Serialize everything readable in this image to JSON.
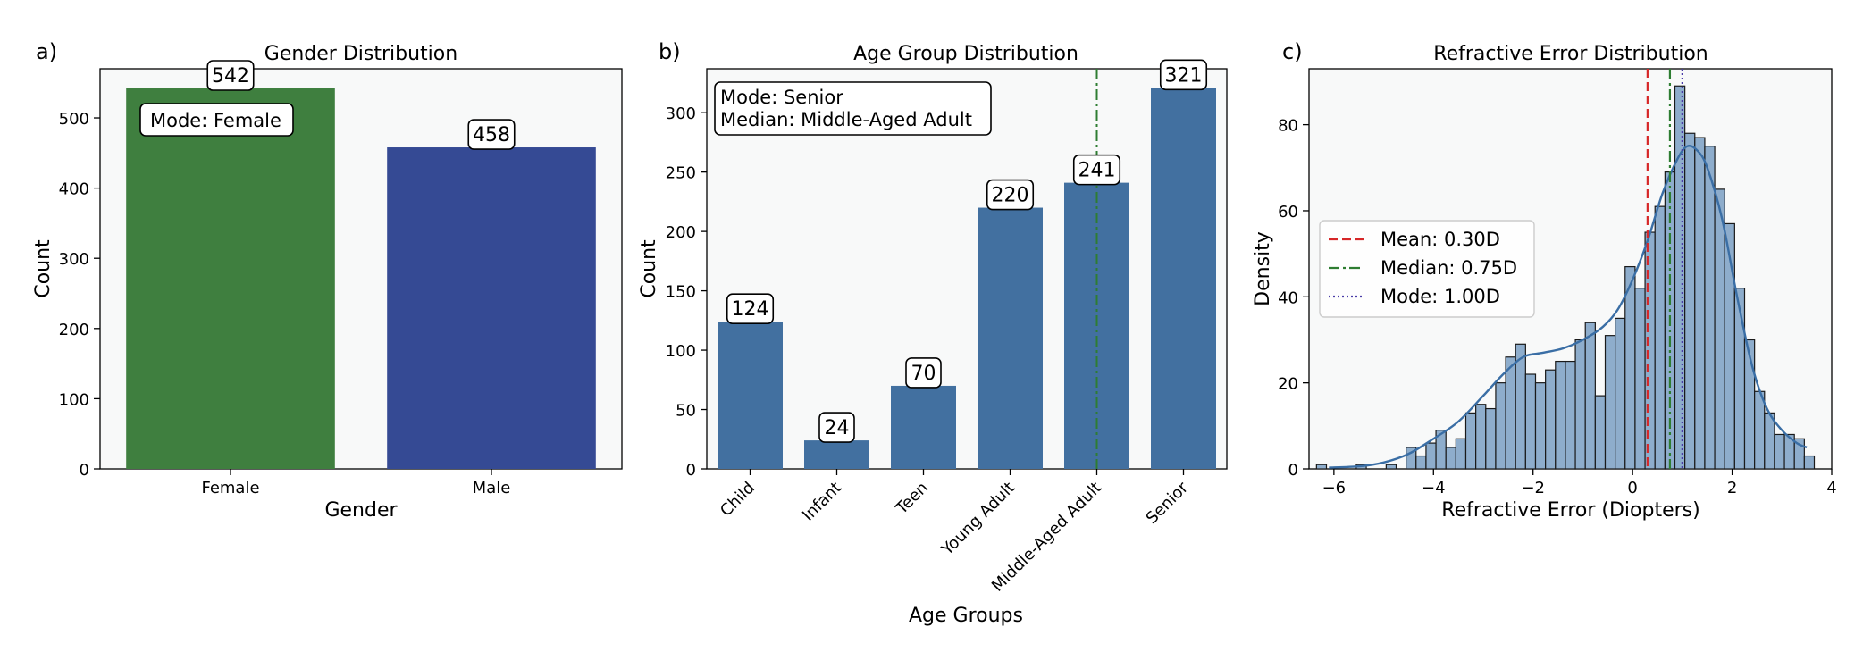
{
  "colors": {
    "female_bar": "#3f7f3f",
    "male_bar": "#354a94",
    "age_bar": "#4270a0",
    "hist_bar": "#8eadcc",
    "kde_line": "#3a6ea5",
    "mean_line": "#d62728",
    "median_line": "#2e7d32",
    "mode_line": "#4a3ca8",
    "panel_background": "#f8f9f9"
  },
  "chart_data": [
    {
      "type": "bar",
      "panel_label": "a)",
      "title": "Gender Distribution",
      "xlabel": "Gender",
      "ylabel": "Count",
      "categories": [
        "Female",
        "Male"
      ],
      "values": [
        542,
        458
      ],
      "ylim": [
        0,
        570
      ],
      "yticks": [
        "0",
        "100",
        "200",
        "300",
        "400",
        "500"
      ],
      "annotation": "Mode: Female",
      "grid": false
    },
    {
      "type": "bar",
      "panel_label": "b)",
      "title": "Age Group Distribution",
      "xlabel": "Age Groups",
      "ylabel": "Count",
      "categories": [
        "Child",
        "Infant",
        "Teen",
        "Young Adult",
        "Middle-Aged Adult",
        "Senior"
      ],
      "values": [
        124,
        24,
        70,
        220,
        241,
        321
      ],
      "ylim": [
        0,
        337
      ],
      "yticks": [
        "0",
        "50",
        "100",
        "150",
        "200",
        "250",
        "300"
      ],
      "annotation_lines": [
        "Mode: Senior",
        "Median: Middle-Aged Adult"
      ],
      "median_marker_category": "Middle-Aged Adult",
      "grid": false
    },
    {
      "type": "histogram",
      "panel_label": "c)",
      "title": "Refractive Error Distribution",
      "xlabel": "Refractive Error (Diopters)",
      "ylabel": "Density",
      "xlim": [
        -6.5,
        4.0
      ],
      "ylim": [
        0,
        93
      ],
      "xticks": [
        "−6",
        "−4",
        "−2",
        "0",
        "2",
        "4"
      ],
      "yticks": [
        "0",
        "20",
        "40",
        "60",
        "80"
      ],
      "bin_width": 0.2,
      "bins": [
        {
          "x": -6.25,
          "y": 1
        },
        {
          "x": -5.45,
          "y": 1
        },
        {
          "x": -4.85,
          "y": 1
        },
        {
          "x": -4.45,
          "y": 5
        },
        {
          "x": -4.25,
          "y": 3
        },
        {
          "x": -4.05,
          "y": 6
        },
        {
          "x": -3.85,
          "y": 9
        },
        {
          "x": -3.65,
          "y": 5
        },
        {
          "x": -3.45,
          "y": 7
        },
        {
          "x": -3.25,
          "y": 13
        },
        {
          "x": -3.05,
          "y": 15
        },
        {
          "x": -2.85,
          "y": 14
        },
        {
          "x": -2.65,
          "y": 20
        },
        {
          "x": -2.45,
          "y": 26
        },
        {
          "x": -2.25,
          "y": 29
        },
        {
          "x": -2.05,
          "y": 22
        },
        {
          "x": -1.85,
          "y": 20
        },
        {
          "x": -1.65,
          "y": 23
        },
        {
          "x": -1.45,
          "y": 25
        },
        {
          "x": -1.25,
          "y": 25
        },
        {
          "x": -1.05,
          "y": 30
        },
        {
          "x": -0.85,
          "y": 34
        },
        {
          "x": -0.65,
          "y": 17
        },
        {
          "x": -0.45,
          "y": 31
        },
        {
          "x": -0.25,
          "y": 35
        },
        {
          "x": -0.05,
          "y": 47
        },
        {
          "x": 0.15,
          "y": 42
        },
        {
          "x": 0.35,
          "y": 55
        },
        {
          "x": 0.55,
          "y": 61
        },
        {
          "x": 0.75,
          "y": 69
        },
        {
          "x": 0.95,
          "y": 89
        },
        {
          "x": 1.15,
          "y": 78
        },
        {
          "x": 1.35,
          "y": 77
        },
        {
          "x": 1.55,
          "y": 75
        },
        {
          "x": 1.75,
          "y": 65
        },
        {
          "x": 1.95,
          "y": 57
        },
        {
          "x": 2.15,
          "y": 42
        },
        {
          "x": 2.35,
          "y": 30
        },
        {
          "x": 2.55,
          "y": 18
        },
        {
          "x": 2.75,
          "y": 13
        },
        {
          "x": 2.95,
          "y": 8
        },
        {
          "x": 3.15,
          "y": 8
        },
        {
          "x": 3.35,
          "y": 7
        },
        {
          "x": 3.55,
          "y": 3
        }
      ],
      "kde": {
        "x": [
          -6.1,
          -5.5,
          -5.0,
          -4.5,
          -4.0,
          -3.5,
          -3.0,
          -2.6,
          -2.2,
          -1.8,
          -1.4,
          -1.0,
          -0.6,
          -0.3,
          0.0,
          0.3,
          0.6,
          0.9,
          1.1,
          1.3,
          1.5,
          1.8,
          2.1,
          2.4,
          2.7,
          3.0,
          3.3,
          3.5
        ],
        "y": [
          0.3,
          0.6,
          1.5,
          3.5,
          7,
          11,
          17,
          22,
          26,
          27,
          28,
          30,
          33,
          37,
          44,
          53,
          64,
          72,
          75,
          74,
          70,
          58,
          40,
          24,
          14,
          9,
          6,
          5
        ]
      },
      "reference_lines": [
        {
          "label": "Mean: 0.30D",
          "x": 0.3,
          "style": "dashed"
        },
        {
          "label": "Median: 0.75D",
          "x": 0.75,
          "style": "dashdot"
        },
        {
          "label": "Mode: 1.00D",
          "x": 1.0,
          "style": "dotted"
        }
      ],
      "legend_placement": "center-left",
      "grid": false
    }
  ]
}
